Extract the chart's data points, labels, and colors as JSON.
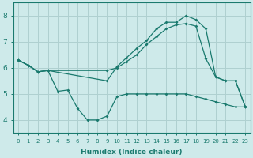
{
  "xlabel": "Humidex (Indice chaleur)",
  "background_color": "#ceeaea",
  "grid_color": "#afd0d0",
  "line_color": "#1a7a6e",
  "xlim": [
    -0.5,
    23.5
  ],
  "ylim": [
    3.5,
    8.5
  ],
  "yticks": [
    4,
    5,
    6,
    7,
    8
  ],
  "xticks": [
    0,
    1,
    2,
    3,
    4,
    5,
    6,
    7,
    8,
    9,
    10,
    11,
    12,
    13,
    14,
    15,
    16,
    17,
    18,
    19,
    20,
    21,
    22,
    23
  ],
  "line_top_x": [
    0,
    1,
    2,
    3,
    9,
    10,
    11,
    12,
    13,
    14,
    15,
    16,
    17,
    18,
    19,
    20,
    21,
    22,
    23
  ],
  "line_top_y": [
    6.3,
    6.1,
    5.85,
    5.9,
    5.5,
    6.05,
    6.4,
    6.75,
    7.05,
    7.5,
    7.75,
    7.75,
    8.0,
    7.85,
    7.5,
    5.65,
    5.5,
    5.5,
    4.5
  ],
  "line_mid_x": [
    0,
    1,
    2,
    3,
    9,
    10,
    11,
    12,
    13,
    14,
    15,
    16,
    17,
    18,
    19,
    20,
    21,
    22,
    23
  ],
  "line_mid_y": [
    6.3,
    6.1,
    5.85,
    5.9,
    5.9,
    6.0,
    6.25,
    6.5,
    6.9,
    7.2,
    7.5,
    7.65,
    7.7,
    7.6,
    6.35,
    5.65,
    5.5,
    5.5,
    4.5
  ],
  "line_bot_x": [
    0,
    1,
    2,
    3,
    4,
    5,
    6,
    7,
    8,
    9,
    10,
    11,
    12,
    13,
    14,
    15,
    16,
    17,
    18,
    19,
    20,
    21,
    22,
    23
  ],
  "line_bot_y": [
    6.3,
    6.1,
    5.85,
    5.9,
    5.1,
    5.15,
    4.45,
    4.0,
    4.0,
    4.15,
    4.9,
    5.0,
    5.0,
    5.0,
    5.0,
    5.0,
    5.0,
    5.0,
    4.9,
    4.8,
    4.7,
    4.6,
    4.5,
    4.5
  ]
}
